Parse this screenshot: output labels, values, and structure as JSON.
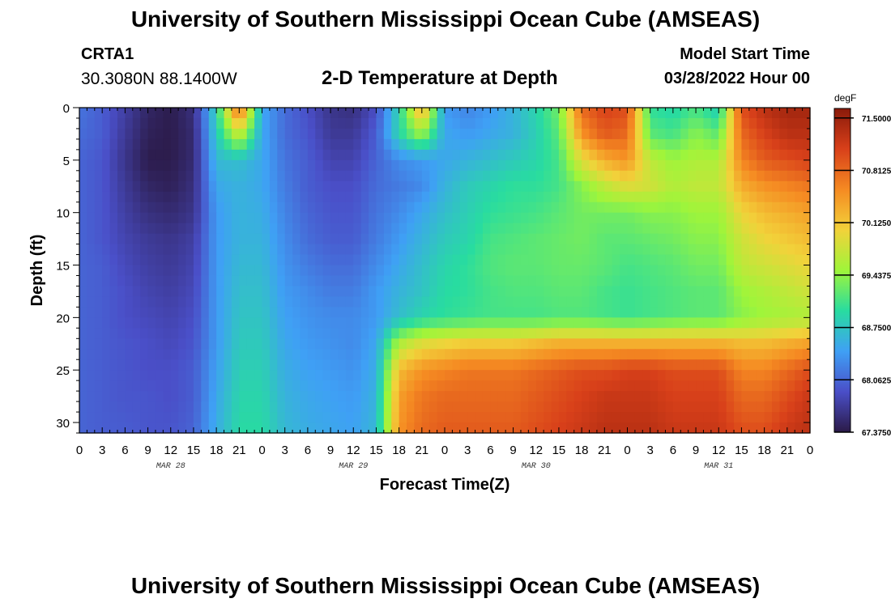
{
  "header": {
    "title": "University of Southern Mississippi Ocean Cube (AMSEAS)",
    "station": "CRTA1",
    "coords": "30.3080N  88.1400W",
    "subtitle": "2-D Temperature at Depth",
    "start_label": "Model Start Time",
    "start_value": "03/28/2022 Hour 00"
  },
  "footer": {
    "title": "University of Southern Mississippi Ocean Cube (AMSEAS)"
  },
  "chart_data": {
    "type": "heatmap",
    "xlabel": "Forecast Time(Z)",
    "ylabel": "Depth (ft)",
    "ylim": [
      0,
      31
    ],
    "y_inverted": true,
    "x_range_hours": [
      0,
      96
    ],
    "x_tick_labels": [
      "0",
      "3",
      "6",
      "9",
      "12",
      "15",
      "18",
      "21",
      "0",
      "3",
      "6",
      "9",
      "12",
      "15",
      "18",
      "21",
      "0",
      "3",
      "6",
      "9",
      "12",
      "15",
      "18",
      "21",
      "0",
      "3",
      "6",
      "9",
      "12",
      "15",
      "18",
      "21",
      "0"
    ],
    "y_ticks": [
      0,
      5,
      10,
      15,
      20,
      25,
      30
    ],
    "day_labels": [
      {
        "label": "MAR 28",
        "hour": 12
      },
      {
        "label": "MAR 29",
        "hour": 36
      },
      {
        "label": "MAR 30",
        "hour": 60
      },
      {
        "label": "MAR 31",
        "hour": 84
      }
    ],
    "colorbar": {
      "unit": "degF",
      "min": 67.375,
      "max": 71.625,
      "labels": [
        "71.5000",
        "70.8125",
        "70.1250",
        "69.4375",
        "68.7500",
        "68.0625",
        "67.3750"
      ],
      "colors": [
        "#2b1a47",
        "#4a4fc8",
        "#3fa0f5",
        "#28dca0",
        "#9ff53a",
        "#f2d23a",
        "#f58a22",
        "#d8401a",
        "#8a1a0a"
      ]
    },
    "depths": [
      0,
      2.5,
      5,
      7.5,
      10,
      12.5,
      15,
      17.5,
      20,
      22.5,
      25,
      27.5,
      31
    ],
    "hours": [
      0,
      3,
      6,
      9,
      12,
      15,
      18,
      21,
      24,
      27,
      30,
      33,
      36,
      39,
      42,
      45,
      48,
      51,
      54,
      57,
      60,
      63,
      66,
      69,
      72,
      75,
      78,
      81,
      84,
      87,
      90,
      93,
      96
    ],
    "values": [
      [
        68.15,
        68.0,
        67.75,
        67.5,
        67.4,
        67.6,
        68.9,
        70.9,
        68.5,
        68.1,
        67.9,
        67.65,
        67.6,
        67.9,
        68.9,
        70.4,
        68.4,
        68.25,
        68.4,
        68.6,
        68.9,
        69.3,
        70.8,
        71.1,
        71.0,
        69.0,
        68.9,
        69.1,
        68.8,
        71.0,
        71.3,
        71.45,
        71.45
      ],
      [
        68.1,
        68.0,
        67.7,
        67.45,
        67.4,
        67.55,
        68.8,
        69.8,
        68.5,
        68.1,
        67.95,
        67.7,
        67.7,
        68.0,
        68.9,
        69.5,
        68.5,
        68.4,
        68.5,
        68.6,
        68.85,
        69.2,
        70.5,
        70.9,
        70.8,
        69.2,
        69.1,
        69.4,
        69.2,
        70.8,
        71.1,
        71.3,
        71.3
      ],
      [
        68.05,
        67.95,
        67.65,
        67.4,
        67.4,
        67.55,
        68.65,
        68.7,
        68.5,
        68.15,
        68.0,
        67.8,
        67.8,
        68.05,
        68.3,
        68.4,
        68.5,
        68.6,
        68.7,
        68.8,
        68.9,
        69.1,
        69.9,
        70.3,
        70.5,
        69.7,
        69.5,
        69.6,
        69.6,
        70.6,
        70.9,
        71.0,
        71.1
      ],
      [
        68.05,
        67.95,
        67.7,
        67.5,
        67.45,
        67.6,
        68.5,
        68.6,
        68.5,
        68.2,
        68.0,
        67.9,
        67.9,
        68.1,
        68.2,
        68.3,
        68.6,
        68.8,
        68.9,
        69.0,
        69.0,
        69.1,
        69.4,
        69.7,
        69.9,
        69.8,
        69.6,
        69.7,
        69.7,
        70.3,
        70.5,
        70.6,
        70.7
      ],
      [
        68.05,
        67.95,
        67.75,
        67.6,
        67.55,
        67.65,
        68.4,
        68.6,
        68.55,
        68.25,
        68.05,
        67.95,
        67.95,
        68.15,
        68.3,
        68.5,
        68.7,
        68.85,
        69.0,
        69.05,
        69.1,
        69.2,
        69.3,
        69.3,
        69.3,
        69.4,
        69.4,
        69.5,
        69.5,
        70.0,
        70.2,
        70.3,
        70.4
      ],
      [
        68.05,
        67.95,
        67.8,
        67.7,
        67.65,
        67.75,
        68.4,
        68.6,
        68.6,
        68.3,
        68.1,
        68.0,
        68.0,
        68.2,
        68.4,
        68.6,
        68.8,
        68.9,
        69.1,
        69.15,
        69.2,
        69.25,
        69.3,
        69.2,
        69.2,
        69.25,
        69.3,
        69.4,
        69.4,
        69.8,
        70.0,
        70.1,
        70.2
      ],
      [
        68.05,
        68.0,
        67.85,
        67.75,
        67.7,
        67.8,
        68.4,
        68.65,
        68.65,
        68.35,
        68.2,
        68.1,
        68.1,
        68.3,
        68.5,
        68.7,
        68.9,
        69.0,
        69.15,
        69.2,
        69.2,
        69.25,
        69.25,
        69.2,
        69.1,
        69.15,
        69.2,
        69.3,
        69.3,
        69.7,
        69.8,
        69.9,
        70.0
      ],
      [
        68.05,
        68.0,
        67.9,
        67.8,
        67.75,
        67.85,
        68.4,
        68.7,
        68.7,
        68.4,
        68.3,
        68.2,
        68.2,
        68.4,
        68.6,
        68.75,
        68.95,
        69.0,
        69.1,
        69.15,
        69.15,
        69.2,
        69.2,
        69.1,
        69.05,
        69.1,
        69.15,
        69.2,
        69.2,
        69.5,
        69.6,
        69.7,
        69.8
      ],
      [
        68.05,
        68.0,
        67.9,
        67.85,
        67.8,
        67.9,
        68.4,
        68.75,
        68.75,
        68.45,
        68.35,
        68.3,
        68.3,
        68.4,
        68.7,
        68.9,
        69.0,
        69.05,
        69.1,
        69.1,
        69.1,
        69.15,
        69.15,
        69.1,
        69.05,
        69.1,
        69.15,
        69.2,
        69.2,
        69.4,
        69.5,
        69.55,
        69.6
      ],
      [
        68.05,
        68.0,
        67.95,
        67.9,
        67.85,
        67.95,
        68.4,
        68.8,
        68.8,
        68.5,
        68.4,
        68.35,
        68.3,
        68.5,
        69.6,
        69.9,
        70.0,
        70.1,
        70.1,
        70.1,
        70.2,
        70.3,
        70.3,
        70.3,
        70.3,
        70.3,
        70.3,
        70.3,
        70.3,
        70.2,
        70.2,
        70.3,
        70.4
      ],
      [
        68.05,
        68.0,
        67.95,
        67.9,
        67.9,
        68.0,
        68.45,
        68.85,
        68.85,
        68.55,
        68.45,
        68.4,
        68.35,
        68.55,
        70.2,
        70.5,
        70.6,
        70.7,
        70.7,
        70.7,
        70.8,
        70.9,
        71.0,
        71.0,
        71.1,
        71.1,
        71.0,
        71.0,
        71.0,
        70.6,
        70.6,
        70.8,
        71.0
      ],
      [
        68.05,
        68.0,
        67.95,
        67.95,
        67.9,
        68.0,
        68.5,
        68.9,
        68.9,
        68.6,
        68.5,
        68.45,
        68.4,
        68.6,
        70.4,
        70.7,
        70.8,
        70.8,
        70.8,
        70.8,
        70.9,
        71.0,
        71.1,
        71.2,
        71.2,
        71.2,
        71.1,
        71.1,
        71.1,
        70.8,
        70.8,
        71.0,
        71.2
      ],
      [
        68.05,
        68.0,
        68.0,
        67.95,
        67.95,
        68.05,
        68.55,
        68.95,
        68.95,
        68.65,
        68.55,
        68.5,
        68.45,
        68.65,
        70.5,
        70.8,
        70.9,
        70.9,
        70.9,
        70.9,
        71.0,
        71.1,
        71.2,
        71.3,
        71.3,
        71.3,
        71.2,
        71.2,
        71.2,
        71.0,
        71.0,
        71.2,
        71.3
      ]
    ]
  }
}
